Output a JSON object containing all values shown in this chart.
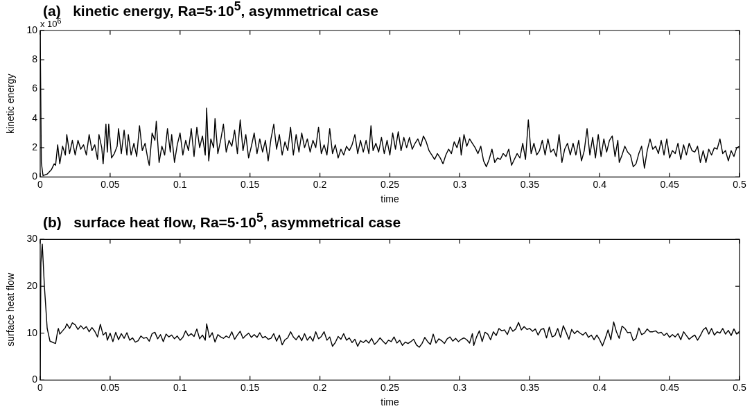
{
  "chart_data": [
    {
      "type": "line",
      "title": "(a)   kinetic energy, Ra=5·10$^{5}$, asymmetrical case",
      "xlabel": "time",
      "ylabel": "kinetic energy",
      "annotations": [
        "x 10$^{6}$"
      ],
      "xlim": [
        0,
        0.5
      ],
      "ylim": [
        0,
        10
      ],
      "xticks": [
        0,
        0.05,
        0.1,
        0.15,
        0.2,
        0.25,
        0.3,
        0.35,
        0.4,
        0.45,
        0.5
      ],
      "yticks": [
        0,
        2,
        4,
        6,
        8,
        10
      ],
      "series": [
        {
          "color": "#000000",
          "x": [
            0,
            0.0008,
            0.002,
            0.005,
            0.008,
            0.01,
            0.011,
            0.0125,
            0.014,
            0.016,
            0.018,
            0.019,
            0.021,
            0.023,
            0.025,
            0.027,
            0.029,
            0.031,
            0.033,
            0.035,
            0.037,
            0.039,
            0.041,
            0.042,
            0.044,
            0.045,
            0.047,
            0.048,
            0.049,
            0.051,
            0.053,
            0.055,
            0.056,
            0.058,
            0.06,
            0.062,
            0.063,
            0.065,
            0.067,
            0.069,
            0.071,
            0.073,
            0.075,
            0.077,
            0.078,
            0.08,
            0.082,
            0.083,
            0.085,
            0.087,
            0.089,
            0.091,
            0.093,
            0.094,
            0.096,
            0.098,
            0.1,
            0.102,
            0.104,
            0.106,
            0.108,
            0.11,
            0.112,
            0.114,
            0.116,
            0.118,
            0.119,
            0.1205,
            0.122,
            0.124,
            0.125,
            0.127,
            0.129,
            0.131,
            0.133,
            0.135,
            0.137,
            0.139,
            0.141,
            0.143,
            0.145,
            0.147,
            0.149,
            0.151,
            0.153,
            0.155,
            0.157,
            0.159,
            0.161,
            0.163,
            0.165,
            0.167,
            0.169,
            0.171,
            0.173,
            0.175,
            0.177,
            0.179,
            0.181,
            0.183,
            0.185,
            0.187,
            0.189,
            0.191,
            0.193,
            0.195,
            0.197,
            0.199,
            0.201,
            0.203,
            0.205,
            0.207,
            0.209,
            0.211,
            0.213,
            0.215,
            0.217,
            0.219,
            0.221,
            0.223,
            0.225,
            0.227,
            0.229,
            0.231,
            0.233,
            0.235,
            0.2365,
            0.238,
            0.24,
            0.242,
            0.244,
            0.246,
            0.248,
            0.25,
            0.252,
            0.254,
            0.256,
            0.258,
            0.26,
            0.262,
            0.264,
            0.266,
            0.268,
            0.27,
            0.272,
            0.274,
            0.276,
            0.278,
            0.28,
            0.282,
            0.284,
            0.286,
            0.288,
            0.29,
            0.292,
            0.294,
            0.296,
            0.298,
            0.3,
            0.301,
            0.303,
            0.305,
            0.307,
            0.309,
            0.311,
            0.313,
            0.315,
            0.317,
            0.319,
            0.321,
            0.323,
            0.325,
            0.327,
            0.329,
            0.331,
            0.333,
            0.335,
            0.337,
            0.339,
            0.341,
            0.343,
            0.345,
            0.347,
            0.349,
            0.351,
            0.353,
            0.355,
            0.357,
            0.359,
            0.361,
            0.363,
            0.365,
            0.367,
            0.369,
            0.371,
            0.373,
            0.375,
            0.377,
            0.379,
            0.381,
            0.383,
            0.385,
            0.387,
            0.389,
            0.391,
            0.393,
            0.395,
            0.397,
            0.399,
            0.401,
            0.403,
            0.405,
            0.407,
            0.409,
            0.411,
            0.413,
            0.414,
            0.416,
            0.418,
            0.42,
            0.422,
            0.424,
            0.426,
            0.428,
            0.43,
            0.432,
            0.434,
            0.436,
            0.438,
            0.44,
            0.442,
            0.444,
            0.446,
            0.448,
            0.45,
            0.452,
            0.454,
            0.456,
            0.458,
            0.46,
            0.462,
            0.464,
            0.466,
            0.468,
            0.47,
            0.472,
            0.474,
            0.476,
            0.478,
            0.48,
            0.482,
            0.484,
            0.486,
            0.488,
            0.49,
            0.492,
            0.494,
            0.496,
            0.498,
            0.5
          ],
          "values": [
            10,
            1,
            0.1,
            0.2,
            0.5,
            0.9,
            0.8,
            2.2,
            0.9,
            2.1,
            1.5,
            2.9,
            1.6,
            2.5,
            1.5,
            2.5,
            1.9,
            2.2,
            1.5,
            2.9,
            1.8,
            2.2,
            1.2,
            2.9,
            2.0,
            0.9,
            3.6,
            1.7,
            3.6,
            1.3,
            1.6,
            2.1,
            3.3,
            1.6,
            3.2,
            1.5,
            2.9,
            1.5,
            2.3,
            1.4,
            3.5,
            1.8,
            2.3,
            1.2,
            0.8,
            3.0,
            2.5,
            3.8,
            1.0,
            2.1,
            1.5,
            3.3,
            1.7,
            2.9,
            1.0,
            2.2,
            3.0,
            1.5,
            2.5,
            1.8,
            3.3,
            1.4,
            3.4,
            2.0,
            2.8,
            1.5,
            4.7,
            1.1,
            2.6,
            2.0,
            4.0,
            1.6,
            2.5,
            3.6,
            1.7,
            2.5,
            2.1,
            3.2,
            1.6,
            3.9,
            1.8,
            2.9,
            1.3,
            2.1,
            3.0,
            1.6,
            2.6,
            1.7,
            2.5,
            1.1,
            2.6,
            3.6,
            1.9,
            2.9,
            1.5,
            2.4,
            1.8,
            3.4,
            1.5,
            2.9,
            1.7,
            3.0,
            2.0,
            2.6,
            1.7,
            2.5,
            2.0,
            3.4,
            1.6,
            2.2,
            1.5,
            3.3,
            1.6,
            2.2,
            1.3,
            1.9,
            1.5,
            2.1,
            1.8,
            2.2,
            2.9,
            1.6,
            2.5,
            1.7,
            2.5,
            1.6,
            3.5,
            1.8,
            2.3,
            1.7,
            2.7,
            1.6,
            2.5,
            1.5,
            3.0,
            1.9,
            3.1,
            1.8,
            2.7,
            2.0,
            2.7,
            1.9,
            2.3,
            2.6,
            2.1,
            2.8,
            2.4,
            1.8,
            1.5,
            1.2,
            1.6,
            1.3,
            0.9,
            1.5,
            1.9,
            1.6,
            2.4,
            2.0,
            2.7,
            1.5,
            2.9,
            2.1,
            2.6,
            2.3,
            2.0,
            1.6,
            2.1,
            1.1,
            0.7,
            1.2,
            1.9,
            1.0,
            1.3,
            1.2,
            1.6,
            1.4,
            1.9,
            0.8,
            1.2,
            1.6,
            1.3,
            2.3,
            1.2,
            3.9,
            1.6,
            2.3,
            1.5,
            1.8,
            2.5,
            1.5,
            2.6,
            1.7,
            1.9,
            1.4,
            2.9,
            1.0,
            1.9,
            2.3,
            1.5,
            2.3,
            1.5,
            2.5,
            1.1,
            1.8,
            3.3,
            1.5,
            2.7,
            1.3,
            2.9,
            1.4,
            2.6,
            1.7,
            2.5,
            2.8,
            1.4,
            2.5,
            1.0,
            1.5,
            2.1,
            1.7,
            1.5,
            0.7,
            0.9,
            1.6,
            2.1,
            0.6,
            1.8,
            2.6,
            1.9,
            2.1,
            1.6,
            2.5,
            1.5,
            2.6,
            1.3,
            1.8,
            1.6,
            2.3,
            1.2,
            2.2,
            1.5,
            2.3,
            1.8,
            1.7,
            2.1,
            1.0,
            1.8,
            1.0,
            1.9,
            1.5,
            2.0,
            1.9,
            2.6,
            1.6,
            1.8,
            1.1,
            1.8,
            1.4,
            2.0,
            2.1
          ]
        }
      ]
    },
    {
      "type": "line",
      "title": "(b)   surface heat flow, Ra=5·10$^{5}$, asymmetrical case",
      "xlabel": "time",
      "ylabel": "surface heat flow",
      "xlim": [
        0,
        0.5
      ],
      "ylim": [
        0,
        30
      ],
      "xticks": [
        0,
        0.05,
        0.1,
        0.15,
        0.2,
        0.25,
        0.3,
        0.35,
        0.4,
        0.45,
        0.5
      ],
      "yticks": [
        0,
        10,
        20,
        30
      ],
      "series": [
        {
          "color": "#000000",
          "x": [
            0,
            0.0005,
            0.0015,
            0.003,
            0.005,
            0.007,
            0.01,
            0.011,
            0.0125,
            0.013,
            0.014,
            0.016,
            0.018,
            0.019,
            0.021,
            0.023,
            0.025,
            0.027,
            0.029,
            0.031,
            0.033,
            0.035,
            0.037,
            0.039,
            0.041,
            0.043,
            0.045,
            0.047,
            0.048,
            0.05,
            0.052,
            0.054,
            0.056,
            0.058,
            0.06,
            0.062,
            0.064,
            0.066,
            0.068,
            0.07,
            0.072,
            0.074,
            0.076,
            0.078,
            0.08,
            0.082,
            0.084,
            0.086,
            0.088,
            0.09,
            0.092,
            0.094,
            0.096,
            0.098,
            0.1,
            0.102,
            0.104,
            0.106,
            0.108,
            0.11,
            0.112,
            0.114,
            0.116,
            0.118,
            0.119,
            0.121,
            0.123,
            0.125,
            0.127,
            0.129,
            0.131,
            0.133,
            0.135,
            0.137,
            0.139,
            0.141,
            0.143,
            0.145,
            0.147,
            0.149,
            0.151,
            0.153,
            0.155,
            0.157,
            0.159,
            0.161,
            0.163,
            0.165,
            0.167,
            0.169,
            0.171,
            0.173,
            0.175,
            0.177,
            0.179,
            0.181,
            0.183,
            0.185,
            0.187,
            0.189,
            0.191,
            0.193,
            0.195,
            0.197,
            0.199,
            0.201,
            0.203,
            0.205,
            0.207,
            0.209,
            0.211,
            0.213,
            0.215,
            0.217,
            0.219,
            0.221,
            0.223,
            0.225,
            0.227,
            0.229,
            0.231,
            0.233,
            0.235,
            0.237,
            0.239,
            0.241,
            0.243,
            0.245,
            0.247,
            0.249,
            0.251,
            0.253,
            0.255,
            0.257,
            0.259,
            0.261,
            0.263,
            0.265,
            0.267,
            0.269,
            0.271,
            0.273,
            0.275,
            0.277,
            0.279,
            0.281,
            0.283,
            0.285,
            0.287,
            0.289,
            0.291,
            0.293,
            0.295,
            0.297,
            0.299,
            0.301,
            0.303,
            0.305,
            0.307,
            0.309,
            0.31,
            0.312,
            0.314,
            0.316,
            0.318,
            0.32,
            0.322,
            0.324,
            0.326,
            0.328,
            0.33,
            0.332,
            0.334,
            0.336,
            0.338,
            0.34,
            0.342,
            0.344,
            0.346,
            0.348,
            0.35,
            0.352,
            0.354,
            0.356,
            0.358,
            0.36,
            0.362,
            0.364,
            0.366,
            0.368,
            0.37,
            0.372,
            0.374,
            0.376,
            0.378,
            0.38,
            0.382,
            0.384,
            0.386,
            0.388,
            0.39,
            0.392,
            0.394,
            0.396,
            0.398,
            0.4,
            0.402,
            0.404,
            0.406,
            0.408,
            0.41,
            0.412,
            0.414,
            0.416,
            0.418,
            0.42,
            0.422,
            0.424,
            0.426,
            0.428,
            0.43,
            0.432,
            0.434,
            0.436,
            0.438,
            0.44,
            0.442,
            0.444,
            0.446,
            0.448,
            0.45,
            0.452,
            0.454,
            0.456,
            0.458,
            0.46,
            0.462,
            0.464,
            0.466,
            0.468,
            0.47,
            0.472,
            0.474,
            0.476,
            0.478,
            0.48,
            0.482,
            0.484,
            0.486,
            0.488,
            0.49,
            0.492,
            0.494,
            0.496,
            0.498,
            0.5
          ],
          "values": [
            0,
            25,
            29,
            20,
            11,
            8.3,
            7.9,
            7.8,
            10.5,
            11,
            9.8,
            10.5,
            11.2,
            12,
            11,
            12.2,
            11.8,
            10.8,
            11.6,
            10.9,
            11.4,
            10.3,
            11.2,
            10.4,
            9.2,
            11.9,
            9.6,
            10.2,
            8.5,
            10.0,
            8.2,
            10.2,
            8.6,
            9.9,
            8.9,
            10.1,
            8.5,
            9.0,
            8.1,
            8.4,
            9.4,
            8.9,
            9.1,
            8.3,
            9.9,
            10.2,
            8.8,
            9.7,
            8.2,
            9.8,
            9.2,
            9.6,
            8.8,
            9.4,
            8.5,
            9.1,
            10.5,
            9.4,
            9.9,
            9.3,
            10.9,
            8.8,
            9.6,
            8.5,
            12,
            9.1,
            10.1,
            8.1,
            9.7,
            9.2,
            8.9,
            9.4,
            9.0,
            10.3,
            8.7,
            9.6,
            10.4,
            8.9,
            9.5,
            10.0,
            9.1,
            9.7,
            9.1,
            10.1,
            9.0,
            9.3,
            8.7,
            8.9,
            9.9,
            8.3,
            9.6,
            7.5,
            8.6,
            9.0,
            10.3,
            9.2,
            8.6,
            9.5,
            8.4,
            9.9,
            8.5,
            9.3,
            8.3,
            10.3,
            8.8,
            9.3,
            10.3,
            8.5,
            9.2,
            7.2,
            8.0,
            9.3,
            8.7,
            9.9,
            8.5,
            9.0,
            8.0,
            8.7,
            7.2,
            8.4,
            8.0,
            8.5,
            7.9,
            8.9,
            7.6,
            8.2,
            9.0,
            8.3,
            7.7,
            8.5,
            8.2,
            9.2,
            7.9,
            8.5,
            7.4,
            8.1,
            7.8,
            8.2,
            8.7,
            7.5,
            7.0,
            7.8,
            9.1,
            8.2,
            7.6,
            9.8,
            7.9,
            8.8,
            8.4,
            7.8,
            8.8,
            9.2,
            8.3,
            8.9,
            8.2,
            8.7,
            9.0,
            8.6,
            7.9,
            9.9,
            7.4,
            9.2,
            10.5,
            8.2,
            10.2,
            9.8,
            8.6,
            10.3,
            9.5,
            11.0,
            10.5,
            10.7,
            9.7,
            11.3,
            10.4,
            10.9,
            12.3,
            10.7,
            11.4,
            10.8,
            11.0,
            10.4,
            10.9,
            9.6,
            10.8,
            11.0,
            9.0,
            11.3,
            9.2,
            9.5,
            11.0,
            9.1,
            11.6,
            10.2,
            8.7,
            10.8,
            9.9,
            10.5,
            10.0,
            9.6,
            10.2,
            9.1,
            9.6,
            8.6,
            9.6,
            8.6,
            7.3,
            8.9,
            10.7,
            8.6,
            12.4,
            10.3,
            8.9,
            11.5,
            11.0,
            10.1,
            10.2,
            8.4,
            8.9,
            11.1,
            9.7,
            10.0,
            10.9,
            10.3,
            10.3,
            10.5,
            10.0,
            10.2,
            9.5,
            10.0,
            9.1,
            9.7,
            9.2,
            9.9,
            8.6,
            10.3,
            9.5,
            8.7,
            9.2,
            9.6,
            8.5,
            9.5,
            10.7,
            11.2,
            9.8,
            11.0,
            9.6,
            10.3,
            10.0,
            11.0,
            9.8,
            10.6,
            9.5,
            10.9,
            9.8,
            10.4
          ]
        }
      ]
    }
  ]
}
